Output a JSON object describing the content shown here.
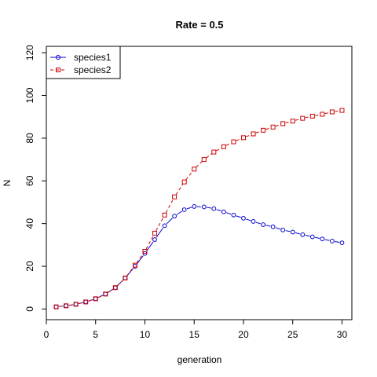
{
  "chart_data": {
    "type": "line",
    "title": "Rate = 0.5",
    "xlabel": "generation",
    "ylabel": "N",
    "xlim": [
      0,
      31
    ],
    "ylim": [
      -5,
      123
    ],
    "xticks": [
      0,
      5,
      10,
      15,
      20,
      25,
      30
    ],
    "yticks": [
      0,
      20,
      40,
      60,
      80,
      100,
      120
    ],
    "grid": false,
    "legend_position": "top-left",
    "x": [
      1,
      2,
      3,
      4,
      5,
      6,
      7,
      8,
      9,
      10,
      11,
      12,
      13,
      14,
      15,
      16,
      17,
      18,
      19,
      20,
      21,
      22,
      23,
      24,
      25,
      26,
      27,
      28,
      29,
      30
    ],
    "series": [
      {
        "name": "species1",
        "color": "#0000cd",
        "marker": "circle",
        "line": "solid",
        "values": [
          1.0,
          1.5,
          2.2,
          3.3,
          4.8,
          7.0,
          10.0,
          14.5,
          20.0,
          26.0,
          32.5,
          39.0,
          43.5,
          46.5,
          48.0,
          47.8,
          47.0,
          45.5,
          44.0,
          42.5,
          41.0,
          39.5,
          38.5,
          37.0,
          36.0,
          34.8,
          33.8,
          32.8,
          31.8,
          31.0
        ]
      },
      {
        "name": "species2",
        "color": "#cd0000",
        "marker": "square",
        "line": "dashed",
        "values": [
          1.0,
          1.5,
          2.2,
          3.3,
          4.8,
          7.0,
          10.0,
          14.5,
          20.5,
          27.0,
          35.5,
          44.0,
          52.5,
          59.5,
          65.5,
          70.0,
          73.5,
          76.0,
          78.3,
          80.2,
          82.0,
          83.7,
          85.2,
          86.8,
          88.0,
          89.3,
          90.3,
          91.2,
          92.3,
          93.0
        ]
      }
    ]
  }
}
